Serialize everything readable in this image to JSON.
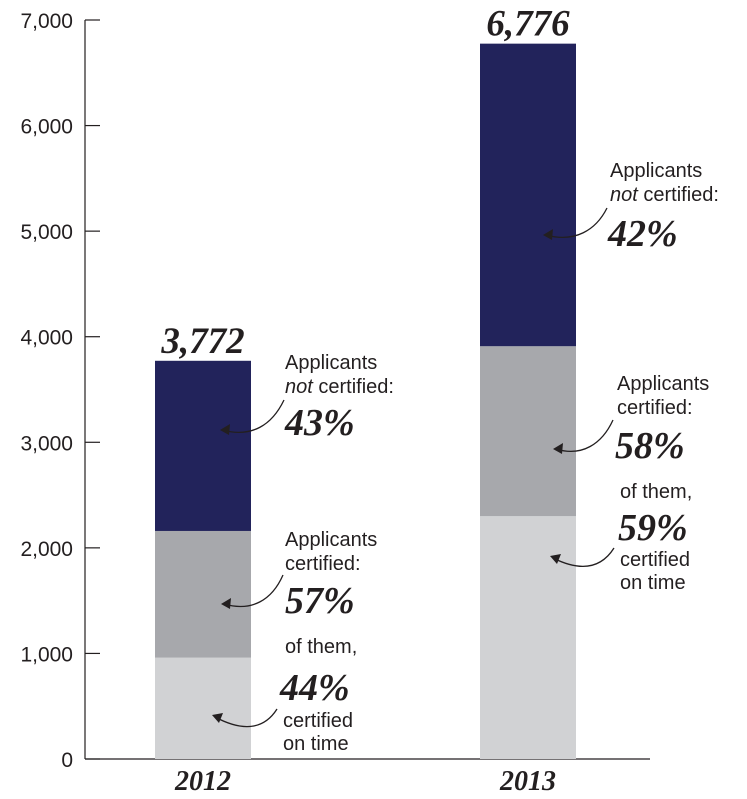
{
  "chart_data": {
    "type": "bar",
    "stacked": true,
    "categories": [
      "2012",
      "2013"
    ],
    "totals": [
      "3,772",
      "6,776"
    ],
    "total_values": [
      3772,
      6776
    ],
    "series": [
      {
        "values": [
          960,
          2300
        ],
        "color": "#d1d2d4"
      },
      {
        "values": [
          1200,
          1610
        ],
        "color": "#a7a8ac"
      },
      {
        "values": [
          1612,
          2866
        ],
        "color": "#22235b"
      }
    ],
    "ylim": [
      0,
      7000
    ],
    "yticks": [
      0,
      1000,
      2000,
      3000,
      4000,
      5000,
      6000,
      7000
    ],
    "ytick_labels": [
      "0",
      "1,000",
      "2,000",
      "3,000",
      "4,000",
      "5,000",
      "6,000",
      "7,000"
    ],
    "annotations": {
      "y2012": {
        "not_certified": {
          "line1": "Applicants",
          "line2_em": "not",
          "line2_rest": " certified:",
          "pct": "43%"
        },
        "certified": {
          "line1": "Applicants",
          "line2": "certified:",
          "pct": "57%"
        },
        "on_time": {
          "line1": "of them,",
          "pct": "44%",
          "line3": "certified",
          "line4": "on time"
        }
      },
      "y2013": {
        "not_certified": {
          "line1": "Applicants",
          "line2_em": "not",
          "line2_rest": " certified:",
          "pct": "42%"
        },
        "certified": {
          "line1": "Applicants",
          "line2": "certified:",
          "pct": "58%"
        },
        "on_time": {
          "line1": "of them,",
          "pct": "59%",
          "line3": "certified",
          "line4": "on time"
        }
      }
    }
  }
}
